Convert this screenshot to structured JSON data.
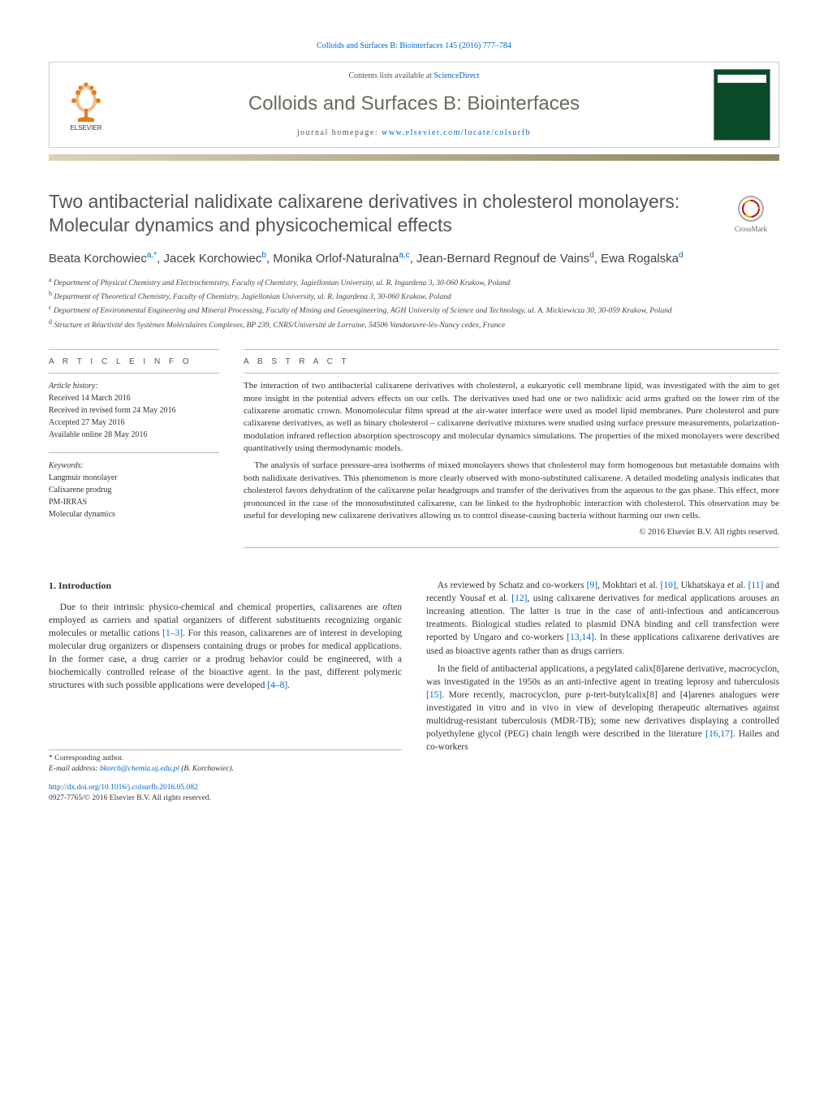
{
  "journal_ref_top": "Colloids and Surfaces B: Biointerfaces 145 (2016) 777–784",
  "header": {
    "contents_prefix": "Contents lists available at ",
    "contents_link_text": "ScienceDirect",
    "journal_name": "Colloids and Surfaces B: Biointerfaces",
    "homepage_prefix": "journal homepage: ",
    "homepage_link_text": "www.elsevier.com/locate/colsurfb"
  },
  "article": {
    "title": "Two antibacterial nalidixate calixarene derivatives in cholesterol monolayers: Molecular dynamics and physicochemical effects",
    "crossmark_label": "CrossMark",
    "authors_html": "Beata Korchowiec<sup>a,*</sup>, Jacek Korchowiec<sup>b</sup>, Monika Orlof-Naturalna<sup>a,c</sup>, Jean-Bernard Regnouf de Vains<sup>d</sup>, Ewa Rogalska<sup>d</sup>",
    "affiliations": [
      "a Department of Physical Chemistry and Electrochemistry, Faculty of Chemistry, Jagiellonian University, ul. R. Ingardena 3, 30-060 Krakow, Poland",
      "b Department of Theoretical Chemistry, Faculty of Chemistry, Jagiellonian University, ul. R. Ingardena 3, 30-060 Krakow, Poland",
      "c Department of Environmental Engineering and Mineral Processing, Faculty of Mining and Geoengineering, AGH University of Science and Technology, ul. A. Mickiewicza 30, 30-059 Krakow, Poland",
      "d Structure et Réactivité des Systèmes Moléculaires Complexes, BP 239, CNRS/Université de Lorraine, 54506 Vandoeuvre-lès-Nancy cedex, France"
    ]
  },
  "info": {
    "section_label": "a r t i c l e   i n f o",
    "history_label": "Article history:",
    "history": [
      "Received 14 March 2016",
      "Received in revised form 24 May 2016",
      "Accepted 27 May 2016",
      "Available online 28 May 2016"
    ],
    "keywords_label": "Keywords:",
    "keywords": [
      "Langmuir monolayer",
      "Calixarene prodrug",
      "PM-IRRAS",
      "Molecular dynamics"
    ]
  },
  "abstract": {
    "section_label": "a b s t r a c t",
    "paragraphs": [
      "The interaction of two antibacterial calixarene derivatives with cholesterol, a eukaryotic cell membrane lipid, was investigated with the aim to get more insight in the potential advers effects on our cells. The derivatives used had one or two nalidixic acid arms grafted on the lower rim of the calixarene aromatic crown. Monomolecular films spread at the air-water interface were used as model lipid membranes. Pure cholesterol and pure calixarene derivatives, as well as binary cholesterol – calixarene derivative mixtures were studied using surface pressure measurements, polarization-modulation infrared reflection absorption spectroscopy and molecular dynamics simulations. The properties of the mixed monolayers were described quantitatively using thermodynamic models.",
      "The analysis of surface pressure-area isotherms of mixed monolayers shows that cholesterol may form homogenous but metastable domains with both nalidixate derivatives. This phenomenon is more clearly observed with mono-substituted calixarene. A detailed modeling analysis indicates that cholesterol favors dehydration of the calixarene polar headgroups and transfer of the derivatives from the aqueous to the gas phase. This effect, more pronounced in the case of the monosubstituted calixarene, can be linked to the hydrophobic interaction with cholesterol. This observation may be useful for developing new calixarene derivatives allowing us to control disease-causing bacteria without harming our own cells."
    ],
    "copyright": "© 2016 Elsevier B.V. All rights reserved."
  },
  "body": {
    "heading": "1. Introduction",
    "left_paragraphs": [
      "Due to their intrinsic physico-chemical and chemical properties, calixarenes are often employed as carriers and spatial organizers of different substituents recognizing organic molecules or metallic cations <span class=\"ref-link\">[1–3]</span>. For this reason, calixarenes are of interest in developing molecular drug organizers or dispensers containing drugs or probes for medical applications. In the former case, a drug carrier or a prodrug behavior could be engineered, with a biochemically controlled release of the bioactive agent. In the past, different polymeric structures with such possible applications were developed <span class=\"ref-link\">[4–8]</span>."
    ],
    "right_paragraphs": [
      "As reviewed by Schatz and co-workers <span class=\"ref-link\">[9]</span>, Mokhtari et al. <span class=\"ref-link\">[10]</span>, Ukhatskaya et al. <span class=\"ref-link\">[11]</span> and recently Yousaf et al. <span class=\"ref-link\">[12]</span>, using calixarene derivatives for medical applications arouses an increasing attention. The latter is true in the case of anti-infectious and anticancerous treatments. Biological studies related to plasmid DNA binding and cell transfection were reported by Ungaro and co-workers <span class=\"ref-link\">[13,14]</span>. In these applications calixarene derivatives are used as bioactive agents rather than as drugs carriers.",
      "In the field of antibacterial applications, a pegylated calix[8]arene derivative, macrocyclon, was investigated in the 1950s as an anti-infective agent in treating leprosy and tuberculosis <span class=\"ref-link\">[15]</span>. More recently, macrocyclon, pure p-tert-butylcalix[8] and [4]arenes analogues were investigated in vitro and in vivo in view of developing therapeutic alternatives against multidrug-resistant tuberculosis (MDR-TB); some new derivatives displaying a controlled polyethylene glycol (PEG) chain length were described in the literature <span class=\"ref-link\">[16,17]</span>. Hailes and co-workers"
    ]
  },
  "footnote": {
    "corresponding": "* Corresponding author.",
    "email_label": "E-mail address: ",
    "email": "bkorch@chemia.uj.edu.pl",
    "email_suffix": " (B. Korchowiec)."
  },
  "doi": {
    "link_text": "http://dx.doi.org/10.1016/j.colsurfb.2016.05.082",
    "issn_line": "0927-7765/© 2016 Elsevier B.V. All rights reserved."
  },
  "colors": {
    "link": "#0066cc",
    "title_gray": "#555555",
    "journal_olive": "#6a6a5a"
  }
}
